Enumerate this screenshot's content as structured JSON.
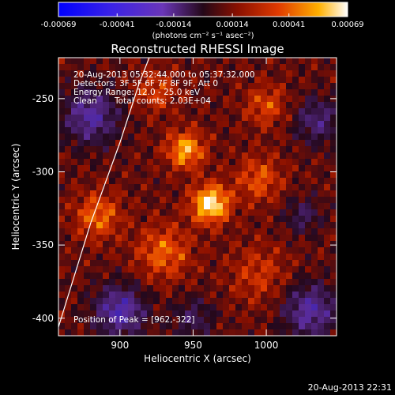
{
  "chart_data": {
    "type": "heatmap",
    "title": "Reconstructed RHESSI Image",
    "xlabel": "Heliocentric X (arcsec)",
    "ylabel": "Heliocentric Y (arcsec)",
    "xlim": [
      858,
      1048
    ],
    "ylim": [
      -412,
      -222
    ],
    "x_ticks": [
      900,
      950,
      1000
    ],
    "y_ticks": [
      -250,
      -300,
      -350,
      -400
    ],
    "colorbar": {
      "colormap": "bicolor (blue-purple negative, red-yellow-white positive)",
      "range": [
        -0.00069,
        0.00069
      ],
      "tick_values": [
        -0.00069,
        -0.00041,
        -0.00014,
        0.00014,
        0.00041,
        0.00069
      ],
      "tick_labels": [
        "-0.00069",
        "-0.00041",
        "-0.00014",
        "0.00014",
        "0.00041",
        "0.00069"
      ],
      "unit_label": "(photons cm⁻² s⁻¹ asec⁻²)"
    },
    "annotations": {
      "time_range": "20-Aug-2013 05:32:44.000 to 05:37:32.000",
      "detectors": "Detectors: 3F 5F 6F 7F 8F 9F, Att 0",
      "energy_range": "Energy Range: 12.0 - 25.0 keV",
      "algorithm": "Clean",
      "total_counts": "Total counts: 2.03E+04",
      "peak_position": "Position of Peak = [962,-322]"
    },
    "peak": {
      "x": 962,
      "y": -322
    },
    "limb_curve": [
      [
        858,
        -406
      ],
      [
        880,
        -335
      ],
      [
        900,
        -280
      ],
      [
        913,
        -240
      ],
      [
        920,
        -222
      ]
    ],
    "timestamp": "20-Aug-2013 22:31"
  }
}
